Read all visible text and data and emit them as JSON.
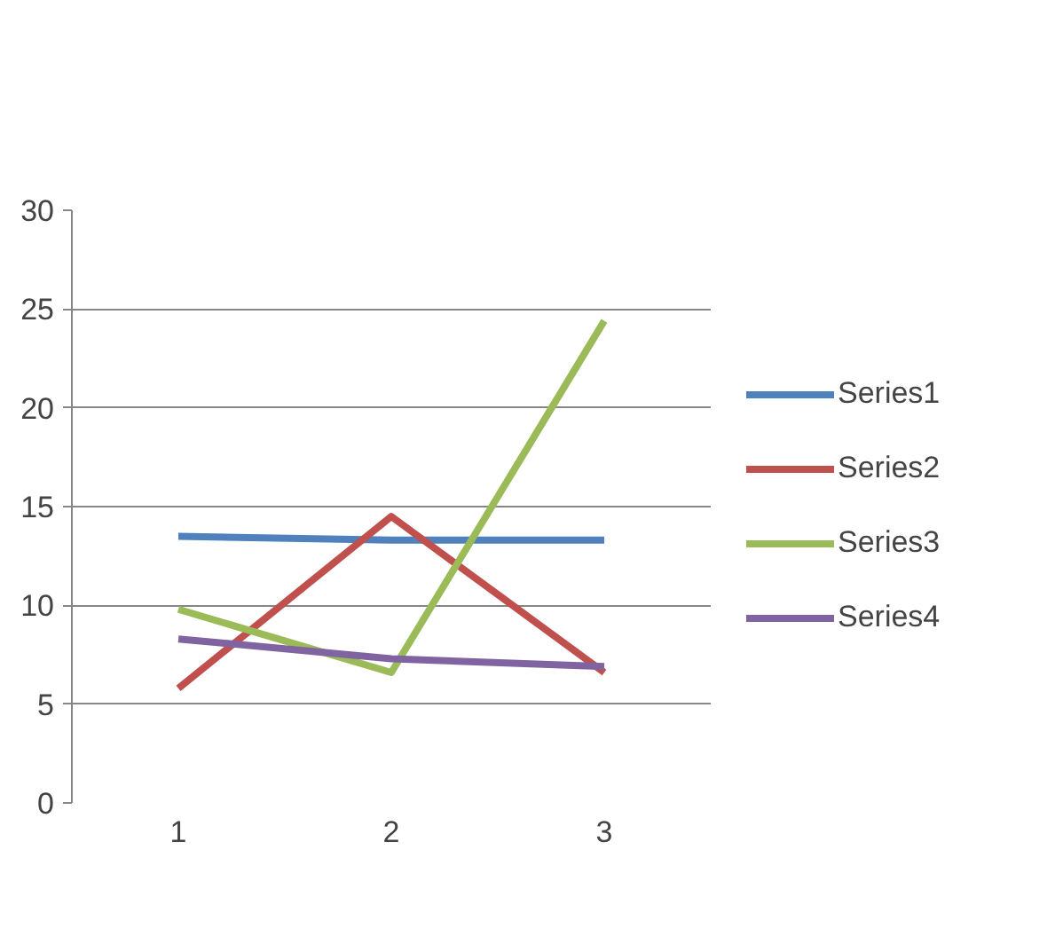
{
  "chart_data": {
    "type": "line",
    "categories": [
      "1",
      "2",
      "3"
    ],
    "series": [
      {
        "name": "Series1",
        "color": "#4f81bd",
        "values": [
          13.5,
          13.3,
          13.3
        ]
      },
      {
        "name": "Series2",
        "color": "#c0504d",
        "values": [
          5.8,
          14.5,
          6.6
        ]
      },
      {
        "name": "Series3",
        "color": "#9bbb59",
        "values": [
          9.8,
          6.6,
          24.4
        ]
      },
      {
        "name": "Series4",
        "color": "#8064a2",
        "values": [
          8.3,
          7.3,
          6.9
        ]
      }
    ],
    "ylim": [
      0,
      30
    ],
    "yticks": [
      0,
      5,
      10,
      15,
      20,
      25,
      30
    ],
    "grid": "y",
    "legend": "right",
    "marker": "none",
    "line_style": "solid"
  }
}
